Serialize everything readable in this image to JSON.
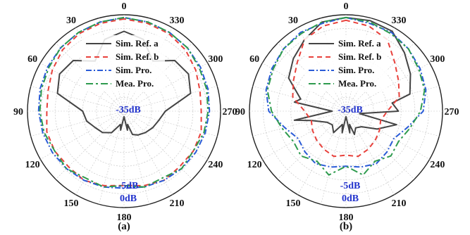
{
  "chart_data": [
    {
      "type": "polar-line",
      "caption": "(a)",
      "angle_labels": [
        "0",
        "30",
        "60",
        "90",
        "120",
        "150",
        "180",
        "210",
        "240",
        "270",
        "300",
        "330"
      ],
      "r_labels": [
        "-35dB",
        "-5dB",
        "0dB"
      ],
      "r_range_db": [
        -35,
        0
      ],
      "angle_direction": "counter-clockwise, 0 at top",
      "legend_position": "center-upper",
      "series": [
        {
          "name": "Sim. Ref. a",
          "color": "#444444",
          "dash": "solid",
          "theta": [
            0,
            15,
            30,
            45,
            60,
            75,
            90,
            105,
            120,
            135,
            150,
            165,
            170,
            175,
            180,
            185,
            190,
            195,
            200,
            210,
            225,
            240,
            255,
            270,
            285,
            300,
            315,
            330,
            345,
            360
          ],
          "db": [
            -6,
            -8,
            -14,
            -9,
            -8,
            -10,
            -20,
            -21,
            -23,
            -24,
            -26,
            -30,
            -28,
            -32,
            -33,
            -32,
            -28,
            -30,
            -26,
            -25,
            -24,
            -23,
            -22,
            -20,
            -10,
            -8,
            -9,
            -14,
            -8,
            -6
          ]
        },
        {
          "name": "Sim. Ref. b",
          "color": "#e8413c",
          "dash": "dashed",
          "theta": [
            0,
            15,
            30,
            45,
            60,
            75,
            90,
            105,
            120,
            135,
            150,
            165,
            180,
            195,
            210,
            225,
            240,
            255,
            270,
            285,
            300,
            315,
            330,
            345,
            360
          ],
          "db": [
            -1.5,
            -2,
            -2.5,
            -3.5,
            -5,
            -6.5,
            -7,
            -6,
            -6,
            -6.5,
            -6,
            -7,
            -8,
            -7,
            -6,
            -6.5,
            -6,
            -6,
            -7,
            -6.5,
            -5,
            -3.5,
            -2.5,
            -2,
            -1.5
          ]
        },
        {
          "name": "Sim. Pro.",
          "color": "#2a5bd7",
          "dash": "dashdot",
          "theta": [
            0,
            15,
            30,
            45,
            60,
            75,
            90,
            105,
            120,
            135,
            150,
            165,
            180,
            195,
            210,
            225,
            240,
            255,
            270,
            285,
            300,
            315,
            330,
            345,
            360
          ],
          "db": [
            -1,
            -1.5,
            -2,
            -2.5,
            -3,
            -3.5,
            -4,
            -4.5,
            -5,
            -5.5,
            -6,
            -6.5,
            -7,
            -6.5,
            -6,
            -5.5,
            -5,
            -4.5,
            -4,
            -3.5,
            -3,
            -2.5,
            -2,
            -1.5,
            -1
          ]
        },
        {
          "name": "Mea. Pro.",
          "color": "#2e9b4e",
          "dash": "dashed-long",
          "theta": [
            0,
            15,
            30,
            45,
            60,
            75,
            90,
            105,
            120,
            135,
            150,
            165,
            180,
            195,
            210,
            225,
            240,
            255,
            270,
            285,
            300,
            315,
            330,
            345,
            360
          ],
          "db": [
            -1,
            -1.5,
            -2,
            -2.5,
            -3.5,
            -4,
            -4.5,
            -5,
            -6,
            -5.5,
            -7,
            -6.5,
            -8,
            -6.5,
            -7,
            -5.5,
            -6,
            -5,
            -4.5,
            -4,
            -3.5,
            -2.5,
            -2,
            -1.5,
            -1
          ]
        }
      ]
    },
    {
      "type": "polar-line",
      "caption": "(b)",
      "angle_labels": [
        "0",
        "30",
        "60",
        "90",
        "120",
        "150",
        "180",
        "210",
        "240",
        "270",
        "300",
        "330"
      ],
      "r_labels": [
        "-35dB",
        "-5dB",
        "0dB"
      ],
      "r_range_db": [
        -35,
        0
      ],
      "angle_direction": "counter-clockwise, 0 at top",
      "legend_position": "center-upper",
      "series": [
        {
          "name": "Sim. Ref. a",
          "color": "#444444",
          "dash": "solid",
          "theta": [
            0,
            15,
            30,
            45,
            60,
            75,
            80,
            90,
            100,
            105,
            120,
            135,
            150,
            165,
            170,
            175,
            180,
            185,
            190,
            195,
            200,
            210,
            225,
            240,
            255,
            260,
            270,
            280,
            285,
            300,
            315,
            330,
            345,
            360
          ],
          "db": [
            -1,
            -1.5,
            -5,
            -8,
            -11,
            -18,
            -16,
            -30,
            -16,
            -22,
            -27,
            -28,
            -26,
            -30,
            -27,
            -32,
            -33,
            -32,
            -27,
            -30,
            -26,
            -28,
            -27,
            -22,
            -16,
            -30,
            -16,
            -18,
            -11,
            -8,
            -5,
            -1.5,
            -1,
            -1
          ]
        },
        {
          "name": "Sim. Ref. b",
          "color": "#e8413c",
          "dash": "dashed",
          "theta": [
            0,
            15,
            30,
            45,
            60,
            75,
            90,
            105,
            120,
            135,
            150,
            165,
            180,
            195,
            210,
            225,
            240,
            255,
            270,
            285,
            300,
            315,
            330,
            345,
            360
          ],
          "db": [
            -2,
            -3,
            -5,
            -10,
            -13,
            -15,
            -20,
            -22,
            -21,
            -20,
            -19,
            -18,
            -19,
            -18,
            -19,
            -20,
            -21,
            -22,
            -20,
            -15,
            -13,
            -10,
            -5,
            -3,
            -2
          ]
        },
        {
          "name": "Sim. Pro.",
          "color": "#2a5bd7",
          "dash": "dashdot",
          "theta": [
            0,
            15,
            30,
            45,
            60,
            75,
            90,
            105,
            120,
            135,
            150,
            165,
            180,
            195,
            210,
            225,
            240,
            255,
            270,
            285,
            300,
            315,
            330,
            345,
            360
          ],
          "db": [
            -1,
            -2,
            -2,
            -3,
            -4,
            -5,
            -7,
            -12,
            -15,
            -14,
            -13,
            -14,
            -15,
            -14,
            -13,
            -14,
            -15,
            -12,
            -7,
            -5,
            -4,
            -3,
            -2,
            -2,
            -1
          ]
        },
        {
          "name": "Mea. Pro.",
          "color": "#2e9b4e",
          "dash": "dashed-long",
          "theta": [
            0,
            15,
            30,
            45,
            60,
            75,
            90,
            105,
            120,
            135,
            150,
            165,
            180,
            195,
            210,
            225,
            240,
            255,
            270,
            285,
            300,
            315,
            330,
            345,
            360
          ],
          "db": [
            -1,
            -1.5,
            -2.5,
            -3,
            -4.5,
            -5.5,
            -8,
            -11,
            -13,
            -12,
            -14,
            -11,
            -15,
            -11,
            -14,
            -12,
            -13,
            -11,
            -8,
            -5.5,
            -4.5,
            -3,
            -2.5,
            -1.5,
            -1
          ]
        }
      ]
    }
  ]
}
